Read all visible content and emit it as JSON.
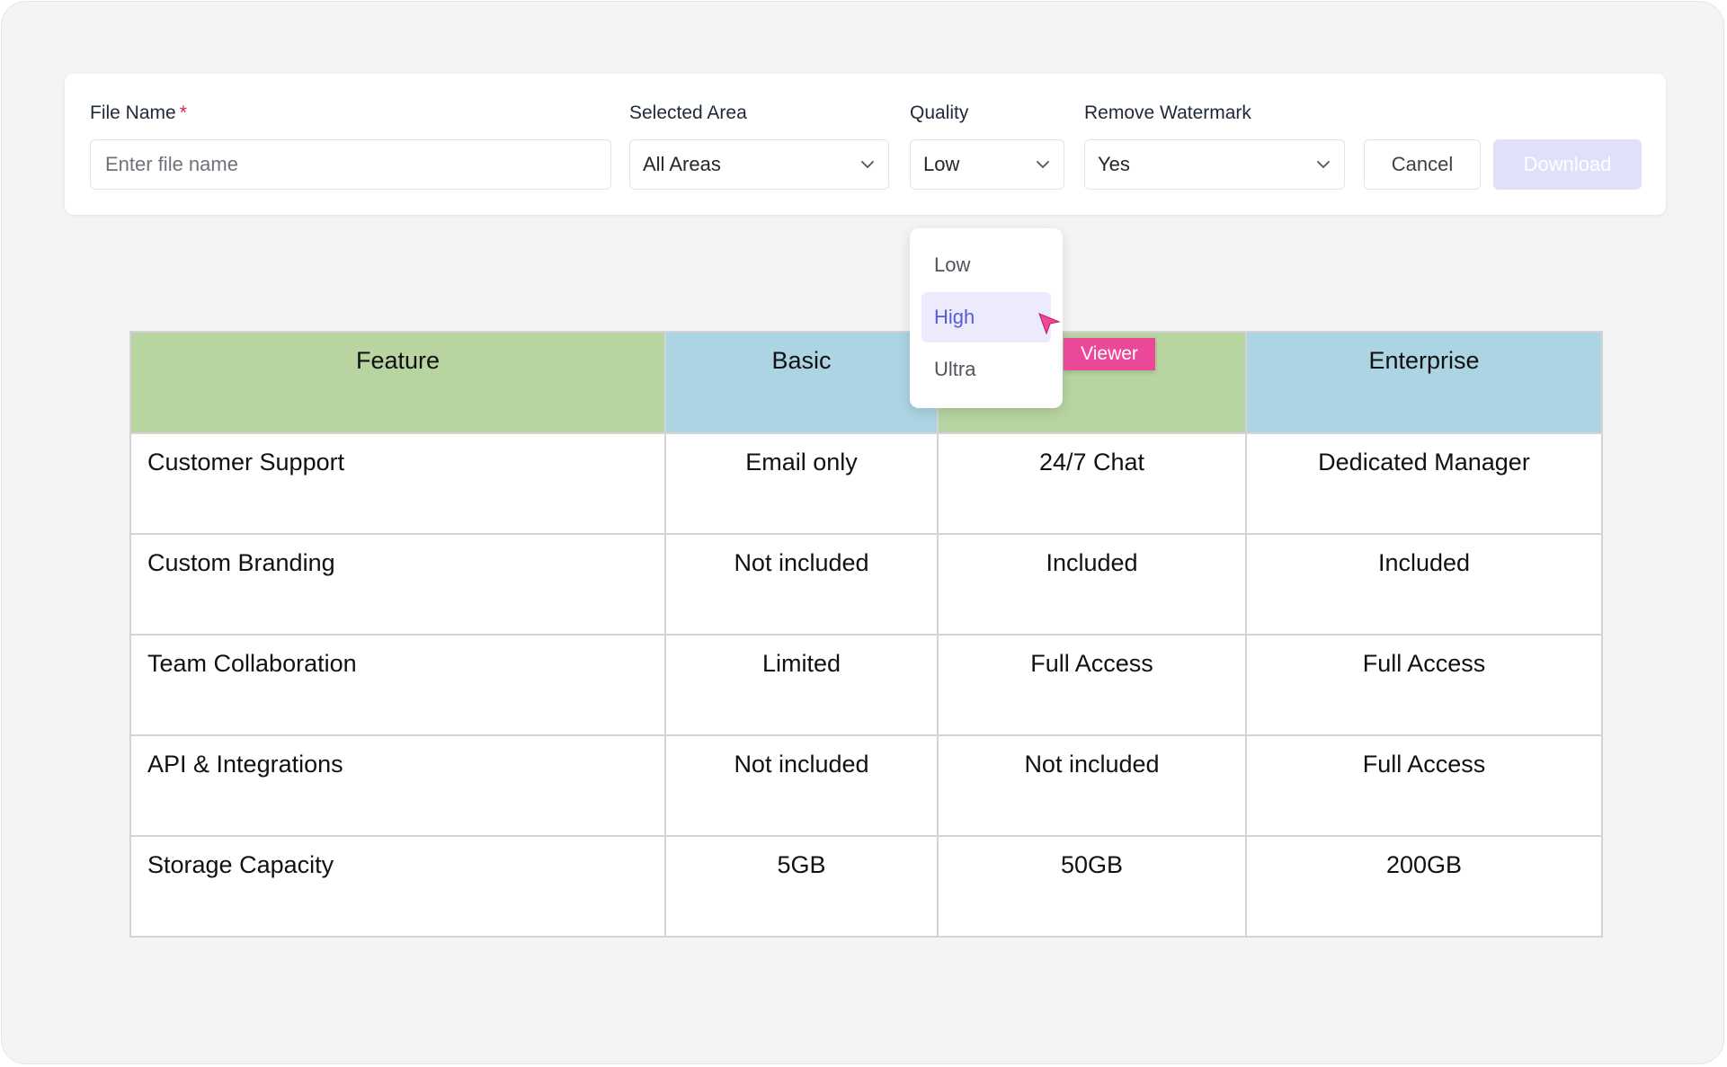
{
  "form": {
    "file_name": {
      "label": "File Name",
      "required_mark": "*",
      "placeholder": "Enter file name",
      "value": ""
    },
    "selected_area": {
      "label": "Selected Area",
      "value": "All Areas"
    },
    "quality": {
      "label": "Quality",
      "value": "Low"
    },
    "remove_watermark": {
      "label": "Remove Watermark",
      "value": "Yes"
    },
    "cancel_label": "Cancel",
    "download_label": "Download"
  },
  "quality_dropdown": {
    "options": [
      "Low",
      "High",
      "Ultra"
    ],
    "highlighted": "High"
  },
  "badge": {
    "label": "Viewer",
    "color": "#ec4899"
  },
  "table": {
    "headers": [
      "Feature",
      "Basic",
      "",
      "Enterprise"
    ],
    "header_colors": [
      "#b8d4a1",
      "#acd4e2",
      "#b8d4a1",
      "#acd4e2"
    ],
    "rows": [
      [
        "Customer Support",
        "Email only",
        "24/7 Chat",
        "Dedicated Manager"
      ],
      [
        "Custom Branding",
        "Not included",
        "Included",
        "Included"
      ],
      [
        "Team Collaboration",
        "Limited",
        "Full Access",
        "Full Access"
      ],
      [
        "API & Integrations",
        "Not included",
        "Not included",
        "Full Access"
      ],
      [
        "Storage Capacity",
        "5GB",
        "50GB",
        "200GB"
      ]
    ]
  },
  "colors": {
    "accent": "#5b5bd6",
    "download_disabled_bg": "#e0e0fb",
    "required": "#e11d48"
  }
}
